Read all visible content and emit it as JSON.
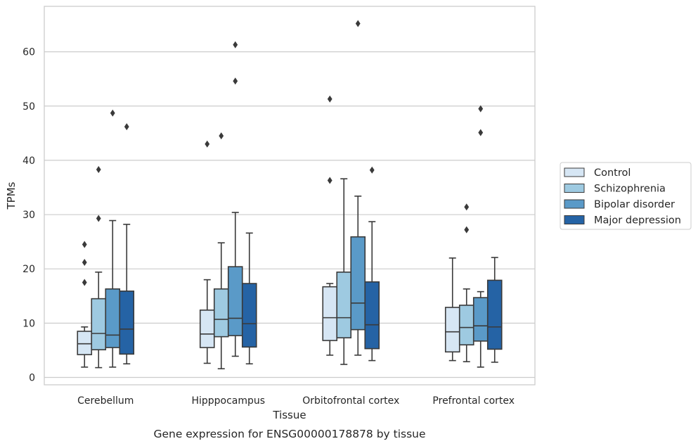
{
  "caption": "Gene expression for ENSG00000178878 by tissue",
  "chart_data": {
    "type": "boxplot",
    "title": "",
    "xlabel": "Tissue",
    "ylabel": "TPMs",
    "ylim": [
      -1.5,
      68
    ],
    "yticks": [
      0,
      10,
      20,
      30,
      40,
      50,
      60
    ],
    "grid": true,
    "legend_position": "right",
    "categories": [
      "Cerebellum",
      "Hipppocampus",
      "Orbitofrontal cortex",
      "Prefrontal cortex"
    ],
    "series": [
      {
        "name": "Control",
        "color": "#d6e6f4",
        "boxes": [
          {
            "whislo": 1.9,
            "q1": 4.2,
            "med": 6.2,
            "q3": 8.5,
            "whishi": 9.3,
            "fliers": [
              17.5,
              21.2,
              24.5
            ]
          },
          {
            "whislo": 2.6,
            "q1": 5.5,
            "med": 8.0,
            "q3": 12.4,
            "whishi": 18.0,
            "fliers": [
              43.0
            ]
          },
          {
            "whislo": 4.1,
            "q1": 6.8,
            "med": 11.0,
            "q3": 16.7,
            "whishi": 17.3,
            "fliers": [
              36.3,
              51.3
            ]
          },
          {
            "whislo": 3.1,
            "q1": 4.7,
            "med": 8.4,
            "q3": 12.9,
            "whishi": 22.0,
            "fliers": []
          }
        ]
      },
      {
        "name": "Schizophrenia",
        "color": "#9ecae1",
        "boxes": [
          {
            "whislo": 1.8,
            "q1": 5.1,
            "med": 8.1,
            "q3": 14.5,
            "whishi": 19.4,
            "fliers": [
              29.3,
              38.3
            ]
          },
          {
            "whislo": 1.6,
            "q1": 7.5,
            "med": 10.7,
            "q3": 16.3,
            "whishi": 24.8,
            "fliers": [
              44.5
            ]
          },
          {
            "whislo": 2.4,
            "q1": 7.3,
            "med": 11.0,
            "q3": 19.4,
            "whishi": 36.6,
            "fliers": []
          },
          {
            "whislo": 2.9,
            "q1": 6.0,
            "med": 9.2,
            "q3": 13.3,
            "whishi": 16.3,
            "fliers": [
              27.2,
              31.4
            ]
          }
        ]
      },
      {
        "name": "Bipolar disorder",
        "color": "#5a9ac8",
        "boxes": [
          {
            "whislo": 1.9,
            "q1": 5.5,
            "med": 7.8,
            "q3": 16.3,
            "whishi": 28.9,
            "fliers": [
              48.7
            ]
          },
          {
            "whislo": 3.9,
            "q1": 7.7,
            "med": 10.9,
            "q3": 20.4,
            "whishi": 30.4,
            "fliers": [
              54.6,
              61.3
            ]
          },
          {
            "whislo": 4.1,
            "q1": 8.8,
            "med": 13.7,
            "q3": 25.9,
            "whishi": 33.4,
            "fliers": [
              65.2
            ]
          },
          {
            "whislo": 1.9,
            "q1": 6.7,
            "med": 9.5,
            "q3": 14.7,
            "whishi": 15.8,
            "fliers": [
              45.1,
              49.5
            ]
          }
        ]
      },
      {
        "name": "Major depression",
        "color": "#2563a5",
        "boxes": [
          {
            "whislo": 2.5,
            "q1": 4.3,
            "med": 8.9,
            "q3": 15.9,
            "whishi": 28.2,
            "fliers": [
              46.2
            ]
          },
          {
            "whislo": 2.5,
            "q1": 5.6,
            "med": 9.9,
            "q3": 17.3,
            "whishi": 26.6,
            "fliers": []
          },
          {
            "whislo": 3.1,
            "q1": 5.3,
            "med": 9.7,
            "q3": 17.6,
            "whishi": 28.7,
            "fliers": [
              38.2
            ]
          },
          {
            "whislo": 2.8,
            "q1": 5.2,
            "med": 9.3,
            "q3": 17.9,
            "whishi": 22.1,
            "fliers": []
          }
        ]
      }
    ]
  }
}
